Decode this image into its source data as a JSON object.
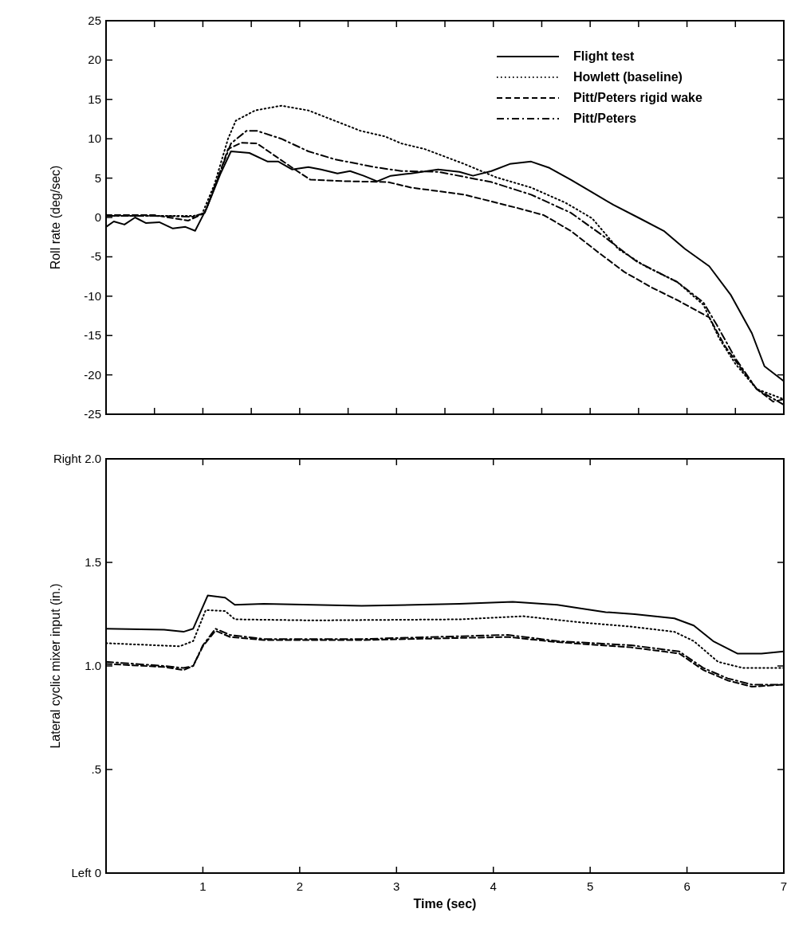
{
  "chart_data": [
    {
      "type": "line",
      "ylabel": "Roll rate (deg/sec)",
      "xlim": [
        0,
        7
      ],
      "ylim": [
        -25,
        25
      ],
      "xticks": [
        {
          "value": 0,
          "label": null
        },
        {
          "value": 0.5,
          "label": null
        },
        {
          "value": 1,
          "label": null
        },
        {
          "value": 1.5,
          "label": null
        },
        {
          "value": 2,
          "label": null
        },
        {
          "value": 2.5,
          "label": null
        },
        {
          "value": 3,
          "label": null
        },
        {
          "value": 3.5,
          "label": null
        },
        {
          "value": 4,
          "label": null
        },
        {
          "value": 4.5,
          "label": null
        },
        {
          "value": 5,
          "label": null
        },
        {
          "value": 5.5,
          "label": null
        },
        {
          "value": 6,
          "label": null
        },
        {
          "value": 6.5,
          "label": null
        },
        {
          "value": 7,
          "label": null
        }
      ],
      "yticks": [
        -25,
        -20,
        -15,
        -10,
        -5,
        0,
        5,
        10,
        15,
        20,
        25
      ],
      "tick_labels": "y",
      "legend": "top right",
      "grid": false,
      "series": [
        {
          "name": "Flight test",
          "color": "#000000",
          "line_style": "solid",
          "x": [
            0,
            0.08,
            0.19,
            0.3,
            0.41,
            0.55,
            0.69,
            0.82,
            0.92,
            1.04,
            1.18,
            1.29,
            1.48,
            1.67,
            1.78,
            1.92,
            2.09,
            2.22,
            2.39,
            2.52,
            2.66,
            2.8,
            2.94,
            3.15,
            3.43,
            3.65,
            3.79,
            3.98,
            4.17,
            4.39,
            4.58,
            4.8,
            5.02,
            5.24,
            5.51,
            5.76,
            5.98,
            6.23,
            6.45,
            6.67,
            6.8,
            7
          ],
          "values": [
            -1.2,
            -0.5,
            -0.9,
            0,
            -0.7,
            -0.6,
            -1.4,
            -1.2,
            -1.7,
            1.2,
            5.5,
            8.4,
            8.2,
            7.1,
            7.1,
            6.1,
            6.4,
            6.1,
            5.6,
            5.9,
            5.3,
            4.6,
            5.3,
            5.6,
            6.1,
            5.8,
            5.3,
            5.9,
            6.8,
            7.1,
            6.3,
            4.8,
            3.2,
            1.6,
            -0.1,
            -1.7,
            -4,
            -6.2,
            -9.8,
            -14.7,
            -18.9,
            -20.8
          ]
        },
        {
          "name": "Howlett (baseline)",
          "color": "#000000",
          "line_style": "dotted",
          "x": [
            0,
            0.5,
            0.9,
            0.99,
            1.12,
            1.26,
            1.34,
            1.54,
            1.81,
            2.09,
            2.36,
            2.63,
            2.88,
            3.05,
            3.29,
            3.7,
            4.03,
            4.39,
            4.74,
            5.02,
            5.29,
            5.57,
            5.9,
            6.17,
            6.33,
            6.5,
            6.72,
            7
          ],
          "values": [
            0.2,
            0.2,
            0.2,
            0.4,
            4.2,
            10,
            12.3,
            13.6,
            14.2,
            13.6,
            12.3,
            11,
            10.3,
            9.4,
            8.7,
            6.8,
            5.1,
            3.8,
            1.9,
            -0.1,
            -4,
            -6.2,
            -8.2,
            -11.1,
            -15.3,
            -18.6,
            -21.8,
            -23.1
          ]
        },
        {
          "name": "Pitt/Peters rigid wake",
          "color": "#000000",
          "line_style": "dashed",
          "x": [
            0,
            0.5,
            0.85,
            1.02,
            1.15,
            1.26,
            1.4,
            1.56,
            1.76,
            1.95,
            2.11,
            2.5,
            2.91,
            3.15,
            3.7,
            4.25,
            4.52,
            4.8,
            5.07,
            5.35,
            5.62,
            5.9,
            6.23,
            6.39,
            6.56,
            6.72,
            6.89,
            7
          ],
          "values": [
            0.3,
            0.3,
            -0.4,
            0.6,
            4.8,
            8.7,
            9.5,
            9.4,
            7.7,
            6.1,
            4.8,
            4.6,
            4.5,
            3.8,
            2.9,
            1.2,
            0.3,
            -1.7,
            -4.3,
            -6.9,
            -8.8,
            -10.5,
            -12.7,
            -16.3,
            -19.2,
            -21.8,
            -23.4,
            -23.1
          ]
        },
        {
          "name": "Pitt/Peters",
          "color": "#000000",
          "line_style": "dashdot",
          "x": [
            0,
            0.5,
            0.9,
            1.02,
            1.18,
            1.29,
            1.45,
            1.56,
            1.81,
            2.09,
            2.36,
            2.77,
            3.05,
            3.43,
            3.98,
            4.39,
            4.8,
            5.13,
            5.48,
            5.9,
            6.17,
            6.31,
            6.5,
            6.72,
            7
          ],
          "values": [
            0.2,
            0.2,
            0.1,
            0.6,
            5.8,
            9.4,
            11,
            11,
            10,
            8.4,
            7.4,
            6.4,
            5.9,
            5.8,
            4.5,
            2.9,
            0.6,
            -2.3,
            -5.6,
            -8.2,
            -10.8,
            -13.7,
            -17.9,
            -21.8,
            -23.8
          ]
        }
      ]
    },
    {
      "type": "line",
      "xlabel": "Time (sec)",
      "ylabel": "Lateral cyclic mixer input (in.)",
      "xlim": [
        0,
        7
      ],
      "ylim": [
        0,
        2
      ],
      "xticks": [
        {
          "value": 0,
          "label": null
        },
        1,
        2,
        3,
        4,
        5,
        6,
        7
      ],
      "yticks": [
        {
          "value": 0,
          "label": "Left 0"
        },
        {
          "value": 0.5,
          "label": ".5"
        },
        {
          "value": 1,
          "label": "1.0"
        },
        1.5,
        {
          "value": 2,
          "label": "Right 2.0"
        }
      ],
      "legend": false,
      "grid": false,
      "series": [
        {
          "color": "#000000",
          "line_style": "solid",
          "x": [
            0,
            0.6,
            0.8,
            0.9,
            1.05,
            1.23,
            1.33,
            1.63,
            2.64,
            3.65,
            4.2,
            4.66,
            5.01,
            5.16,
            5.46,
            5.87,
            6.07,
            6.27,
            6.52,
            6.77,
            7
          ],
          "values": [
            1.18,
            1.175,
            1.165,
            1.18,
            1.34,
            1.33,
            1.295,
            1.3,
            1.29,
            1.3,
            1.31,
            1.295,
            1.27,
            1.26,
            1.25,
            1.23,
            1.195,
            1.12,
            1.06,
            1.06,
            1.07
          ]
        },
        {
          "color": "#000000",
          "line_style": "dotted",
          "x": [
            0,
            0.76,
            0.9,
            1.03,
            1.23,
            1.33,
            2.14,
            3.65,
            4.31,
            4.91,
            5.42,
            5.87,
            6.07,
            6.32,
            6.58,
            7
          ],
          "values": [
            1.11,
            1.095,
            1.12,
            1.27,
            1.265,
            1.225,
            1.22,
            1.225,
            1.24,
            1.21,
            1.19,
            1.165,
            1.12,
            1.02,
            0.99,
            0.99
          ]
        },
        {
          "color": "#000000",
          "line_style": "dashed",
          "x": [
            0,
            0.6,
            0.8,
            0.9,
            1,
            1.13,
            1.28,
            1.63,
            2.64,
            4.15,
            4.66,
            5.42,
            5.92,
            6.17,
            6.42,
            6.67,
            7
          ],
          "values": [
            1.01,
            0.995,
            0.98,
            1,
            1.095,
            1.17,
            1.14,
            1.125,
            1.125,
            1.14,
            1.115,
            1.09,
            1.06,
            0.98,
            0.93,
            0.9,
            0.91
          ]
        },
        {
          "color": "#000000",
          "line_style": "dashdot",
          "x": [
            0,
            0.6,
            0.8,
            0.9,
            1,
            1.13,
            1.28,
            1.63,
            2.64,
            4.15,
            4.66,
            5.42,
            5.92,
            6.17,
            6.42,
            6.67,
            7
          ],
          "values": [
            1.02,
            1.0,
            0.99,
            1.0,
            1.1,
            1.18,
            1.15,
            1.13,
            1.13,
            1.15,
            1.12,
            1.1,
            1.07,
            0.99,
            0.94,
            0.91,
            0.91
          ]
        }
      ]
    }
  ]
}
